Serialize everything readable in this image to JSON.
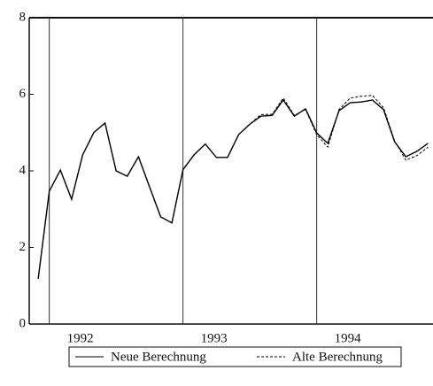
{
  "chart_data": {
    "type": "line",
    "x": [
      1991.917,
      1992.0,
      1992.083,
      1992.167,
      1992.25,
      1992.333,
      1992.417,
      1992.5,
      1992.583,
      1992.667,
      1992.75,
      1992.833,
      1992.917,
      1993.0,
      1993.083,
      1993.167,
      1993.25,
      1993.333,
      1993.417,
      1993.5,
      1993.583,
      1993.667,
      1993.75,
      1993.833,
      1993.917,
      1994.0,
      1994.083,
      1994.167,
      1994.25,
      1994.333,
      1994.417,
      1994.5,
      1994.583,
      1994.667,
      1994.75,
      1994.833
    ],
    "series": [
      {
        "name": "Neue Berechnung",
        "color": "#000000",
        "style": "solid",
        "values": [
          1.18,
          3.47,
          4.02,
          3.26,
          4.42,
          5.0,
          5.25,
          4.0,
          3.86,
          4.37,
          3.58,
          2.8,
          2.64,
          4.03,
          4.42,
          4.7,
          4.35,
          4.35,
          4.95,
          5.22,
          5.43,
          5.45,
          5.85,
          5.43,
          5.62,
          4.99,
          4.72,
          5.57,
          5.78,
          5.8,
          5.85,
          5.6,
          4.76,
          4.37,
          4.51,
          4.72
        ]
      },
      {
        "name": "Alte Berechnung",
        "color": "#000000",
        "style": "dashed",
        "values": [
          1.18,
          3.47,
          4.02,
          3.26,
          4.42,
          5.0,
          5.25,
          4.0,
          3.86,
          4.37,
          3.58,
          2.8,
          2.64,
          4.03,
          4.42,
          4.7,
          4.35,
          4.35,
          4.95,
          5.22,
          5.47,
          5.48,
          5.9,
          5.45,
          5.6,
          4.95,
          4.62,
          5.6,
          5.9,
          5.95,
          5.97,
          5.65,
          4.78,
          4.28,
          4.4,
          4.62
        ]
      }
    ],
    "xlim": [
      1991.85,
      1994.87
    ],
    "xticks": [
      1992,
      1993,
      1994
    ],
    "ylim": [
      0,
      8
    ],
    "yticks": [
      0,
      2,
      4,
      6,
      8
    ],
    "year_lines": true
  }
}
